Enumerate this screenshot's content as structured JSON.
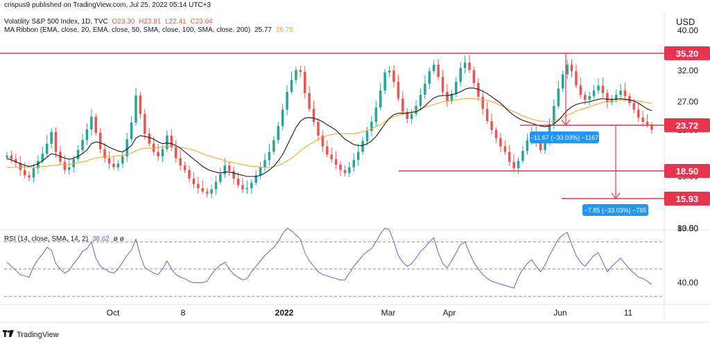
{
  "header": {
    "attribution": "crispus9 published on TradingView.com, Jul 25, 2022 05:14 UTC+3",
    "symbol": "Volatility S&P 500 Index, 1D, TVC",
    "ohlc": {
      "o": "O23.30",
      "h": "H23.81",
      "l": "L22.41",
      "c": "C23.04"
    },
    "ma_label": "MA Ribbon (EMA, close, 20, EMA, close, 50, SMA, close, 100, SMA, close, 200)",
    "ma_values": [
      "25.77",
      "26.75"
    ],
    "rsi_label": "RSI (14, close, SMA, 14, 2)",
    "rsi_value": "38.62",
    "rsi_extra": "ø ø"
  },
  "footer": {
    "brand": "TradingView"
  },
  "price_axis": {
    "currency": "USD",
    "ticks": [
      "40.00",
      "32.00",
      "27.00",
      "23.00",
      "18.00",
      "13.50"
    ],
    "rsi_ticks": [
      "80.00",
      "40.00"
    ]
  },
  "time_axis": {
    "labels": [
      "Oct",
      "8",
      "2022",
      "Mar",
      "Apr",
      "Jun",
      "11"
    ]
  },
  "levels": [
    {
      "value": "35.20",
      "color": "#e8344e"
    },
    {
      "value": "23.72",
      "color": "#e8344e"
    },
    {
      "value": "18.50",
      "color": "#e8344e"
    },
    {
      "value": "15.93",
      "color": "#e8344e"
    }
  ],
  "measurements": [
    {
      "text": "−11.67 (−33.03%) −1167"
    },
    {
      "text": "−7.85 (−33.03%) −785"
    }
  ],
  "chart_data": {
    "type": "candlestick",
    "title": "Volatility S&P 500 Index, 1D, TVC",
    "x_labels": [
      "Oct",
      "8",
      "2022",
      "Mar",
      "Apr",
      "Jun",
      "11"
    ],
    "ylabel": "USD",
    "ylim": [
      13.5,
      40
    ],
    "close": [
      20.2,
      19.8,
      19.4,
      18.6,
      18.1,
      17.9,
      18.8,
      19.6,
      20.4,
      21.5,
      22.8,
      20.6,
      19.5,
      18.6,
      18.9,
      19.8,
      20.8,
      21.9,
      23.1,
      24.9,
      22.7,
      20.9,
      19.9,
      19.3,
      18.9,
      19.3,
      20.1,
      22.0,
      24.1,
      28.0,
      25.3,
      22.6,
      21.5,
      20.6,
      20.1,
      20.9,
      22.4,
      21.1,
      19.9,
      19.1,
      18.6,
      17.8,
      17.3,
      16.9,
      16.6,
      16.4,
      16.8,
      17.5,
      18.2,
      19.1,
      18.5,
      17.8,
      17.2,
      16.8,
      16.9,
      17.4,
      18.1,
      18.9,
      19.7,
      20.6,
      21.9,
      23.6,
      25.9,
      28.6,
      30.5,
      32.1,
      31.8,
      28.4,
      26.0,
      24.2,
      22.4,
      21.2,
      20.3,
      19.8,
      19.2,
      18.6,
      18.3,
      18.9,
      19.7,
      20.6,
      21.8,
      22.9,
      24.2,
      26.2,
      28.8,
      31.7,
      32.0,
      30.2,
      27.5,
      25.6,
      24.6,
      25.3,
      26.4,
      28.1,
      29.9,
      31.9,
      33.1,
      31.0,
      28.6,
      27.1,
      28.3,
      30.2,
      32.5,
      33.5,
      32.1,
      30.0,
      27.8,
      26.0,
      24.3,
      23.0,
      22.1,
      21.2,
      20.6,
      19.5,
      18.8,
      19.6,
      20.7,
      21.9,
      22.6,
      21.8,
      20.8,
      21.9,
      23.9,
      26.4,
      29.1,
      31.4,
      33.1,
      31.9,
      29.6,
      28.1,
      27.3,
      27.9,
      28.8,
      29.6,
      28.4,
      26.9,
      27.4,
      28.1,
      28.8,
      27.9,
      26.8,
      25.9,
      24.8,
      24.2,
      23.72,
      23.04
    ],
    "ema20": [
      19.9,
      19.7,
      19.5,
      19.3,
      19.1,
      19.0,
      19.1,
      19.3,
      19.6,
      20.0,
      20.4,
      20.3,
      20.1,
      19.9,
      19.8,
      19.9,
      20.1,
      20.4,
      20.8,
      21.5,
      21.7,
      21.6,
      21.4,
      21.1,
      20.9,
      20.7,
      20.6,
      20.9,
      21.3,
      22.1,
      22.4,
      22.3,
      22.2,
      22.0,
      21.7,
      21.5,
      21.6,
      21.5,
      21.3,
      21.0,
      20.6,
      20.2,
      19.8,
      19.4,
      19.0,
      18.7,
      18.5,
      18.4,
      18.3,
      18.4,
      18.4,
      18.3,
      18.2,
      18.1,
      18.0,
      18.0,
      18.0,
      18.1,
      18.3,
      18.6,
      19.0,
      19.6,
      20.3,
      21.3,
      22.3,
      23.4,
      24.3,
      24.7,
      24.8,
      24.7,
      24.5,
      24.2,
      23.8,
      23.4,
      23.0,
      22.5,
      22.0,
      21.7,
      21.4,
      21.3,
      21.3,
      21.5,
      21.8,
      22.3,
      23.0,
      23.9,
      24.7,
      25.2,
      25.4,
      25.4,
      25.4,
      25.5,
      25.6,
      25.9,
      26.4,
      27.0,
      27.6,
      27.9,
      28.0,
      28.0,
      28.1,
      28.3,
      28.6,
      29.0,
      29.2,
      29.2,
      29.0,
      28.7,
      28.3,
      27.8,
      27.3,
      26.8,
      26.2,
      25.6,
      25.1,
      24.7,
      24.4,
      24.2,
      24.0,
      23.8,
      23.6,
      23.5,
      23.6,
      23.9,
      24.4,
      25.1,
      25.8,
      26.3,
      26.6,
      26.8,
      26.9,
      27.0,
      27.2,
      27.4,
      27.5,
      27.4,
      27.4,
      27.4,
      27.5,
      27.4,
      27.3,
      27.1,
      26.8,
      26.4,
      26.0,
      25.77
    ],
    "sma50": [
      18.9,
      18.9,
      18.9,
      18.9,
      18.9,
      18.9,
      18.9,
      18.9,
      19.0,
      19.0,
      19.1,
      19.1,
      19.2,
      19.2,
      19.2,
      19.3,
      19.4,
      19.5,
      19.6,
      19.8,
      19.9,
      20.0,
      20.1,
      20.1,
      20.1,
      20.2,
      20.2,
      20.3,
      20.5,
      20.7,
      20.9,
      21.0,
      21.0,
      21.0,
      21.1,
      21.1,
      21.2,
      21.2,
      21.2,
      21.1,
      21.0,
      20.9,
      20.8,
      20.6,
      20.4,
      20.2,
      20.1,
      19.9,
      19.8,
      19.6,
      19.5,
      19.4,
      19.3,
      19.2,
      19.1,
      19.0,
      19.0,
      18.9,
      18.9,
      18.9,
      19.0,
      19.1,
      19.3,
      19.6,
      19.9,
      20.3,
      20.7,
      21.1,
      21.4,
      21.7,
      22.0,
      22.2,
      22.4,
      22.5,
      22.6,
      22.6,
      22.6,
      22.6,
      22.6,
      22.7,
      22.8,
      23.0,
      23.2,
      23.5,
      23.8,
      24.2,
      24.6,
      24.9,
      25.1,
      25.3,
      25.4,
      25.6,
      25.8,
      26.0,
      26.2,
      26.4,
      26.6,
      26.8,
      27.0,
      27.1,
      27.2,
      27.3,
      27.4,
      27.5,
      27.5,
      27.5,
      27.4,
      27.3,
      27.2,
      27.0,
      26.8,
      26.5,
      26.2,
      25.9,
      25.6,
      25.3,
      25.0,
      24.8,
      24.6,
      24.4,
      24.3,
      24.2,
      24.2,
      24.3,
      24.5,
      24.8,
      25.1,
      25.4,
      25.7,
      25.9,
      26.1,
      26.3,
      26.5,
      26.7,
      26.9,
      27.0,
      27.1,
      27.2,
      27.3,
      27.3,
      27.3,
      27.2,
      27.1,
      27.0,
      26.9,
      26.75
    ],
    "rsi": [
      55,
      52,
      49,
      46,
      45,
      44,
      52,
      57,
      61,
      66,
      64,
      54,
      50,
      47,
      49,
      54,
      58,
      63,
      65,
      70,
      58,
      52,
      50,
      48,
      47,
      50,
      55,
      60,
      64,
      72,
      60,
      51,
      49,
      47,
      46,
      50,
      56,
      50,
      46,
      44,
      43,
      41,
      40,
      40,
      40,
      41,
      46,
      50,
      53,
      55,
      50,
      46,
      44,
      42,
      43,
      48,
      52,
      56,
      60,
      63,
      66,
      70,
      76,
      80,
      78,
      75,
      72,
      62,
      56,
      52,
      48,
      46,
      45,
      44,
      43,
      42,
      42,
      47,
      52,
      56,
      60,
      63,
      65,
      70,
      76,
      80,
      79,
      70,
      60,
      55,
      52,
      54,
      58,
      63,
      66,
      70,
      73,
      62,
      54,
      51,
      56,
      62,
      68,
      70,
      62,
      55,
      50,
      46,
      43,
      41,
      40,
      39,
      38,
      37,
      36,
      44,
      50,
      54,
      57,
      52,
      48,
      53,
      60,
      66,
      72,
      75,
      77,
      68,
      60,
      55,
      52,
      56,
      60,
      62,
      55,
      48,
      52,
      55,
      58,
      54,
      50,
      47,
      44,
      43,
      41,
      38.62
    ],
    "levels": [
      35.2,
      23.72,
      18.5,
      15.93
    ],
    "rsi_ylim": [
      25,
      85
    ],
    "grid": false
  }
}
